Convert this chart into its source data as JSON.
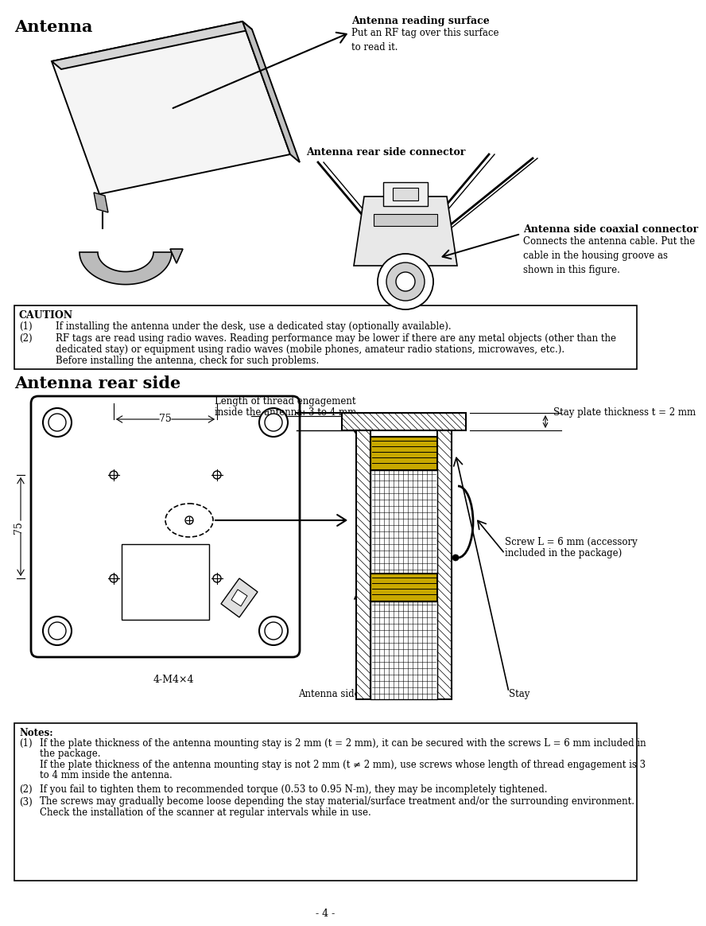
{
  "page_width": 7.99,
  "page_height": 11.44,
  "bg_color": "#ffffff",
  "title1": "Antenna",
  "title2": "Antenna rear side",
  "label_reading_surface_bold": "Antenna reading surface",
  "label_reading_surface": "Put an RF tag over this surface\nto read it.",
  "label_rear_connector_bold": "Antenna rear side connector",
  "label_coaxial_bold": "Antenna side coaxial connector",
  "label_coaxial": "Connects the antenna cable. Put the\ncable in the housing groove as\nshown in this figure.",
  "caution_title": "CAUTION",
  "caution_1": "If installing the antenna under the desk, use a dedicated stay (optionally available).",
  "caution_2a": "RF tags are read using radio waves. Reading performance may be lower if there are any metal objects (other than the",
  "caution_2b": "dedicated stay) or equipment using radio waves (mobile phones, amateur radio stations, microwaves, etc.).",
  "caution_2c": "Before installing the antenna, check for such problems.",
  "notes_title": "Notes:",
  "note1a": "If the plate thickness of the antenna mounting stay is 2 mm (t = 2 mm), it can be secured with the screws L = 6 mm included in",
  "note1b": "the package.",
  "note1c": "If the plate thickness of the antenna mounting stay is not 2 mm (t ≠ 2 mm), use screws whose length of thread engagement is 3",
  "note1d": "to 4 mm inside the antenna.",
  "note2": "If you fail to tighten them to recommended torque (0.53 to 0.95 N-m), they may be incompletely tightened.",
  "note3a": "The screws may gradually become loose depending the stay material/surface treatment and/or the surrounding environment.",
  "note3b": "Check the installation of the scanner at regular intervals while in use.",
  "dim_75": "75",
  "screw_label": "4-M4×4",
  "thread_label_1": "Length of thread engagement",
  "thread_label_2": "inside the antenna: 3 to 4 mm",
  "stay_thickness_label": "Stay plate thickness t = 2 mm",
  "screw_L_label_1": "Screw L = 6 mm (accessory",
  "screw_L_label_2": "included in the package)",
  "insert_nut_label": "Antenna side insert nut",
  "stay_label": "Stay",
  "page_num": "- 4 -",
  "gold_color": "#c8a800"
}
